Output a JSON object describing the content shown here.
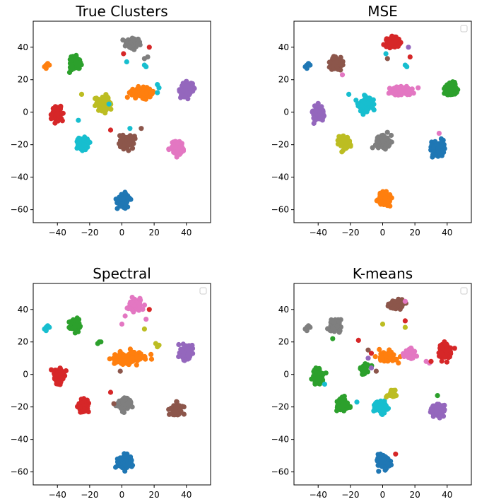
{
  "palette": [
    "#1f77b4",
    "#ff7f0e",
    "#2ca02c",
    "#d62728",
    "#9467bd",
    "#8c564b",
    "#e377c2",
    "#7f7f7f",
    "#bcbd22",
    "#17becf"
  ],
  "chart_data": [
    {
      "type": "scatter",
      "title": "True Clusters",
      "xlim": [
        -55,
        55
      ],
      "ylim": [
        -68,
        56
      ],
      "xticks": [
        -40,
        -20,
        0,
        20,
        40
      ],
      "yticks": [
        -60,
        -40,
        -20,
        0,
        20,
        40
      ],
      "legend": false,
      "clusters": [
        {
          "color": "#1f77b4",
          "cx": 1,
          "cy": -54,
          "sx": 3.5,
          "sy": 3.5,
          "n": 110
        },
        {
          "color": "#ff7f0e",
          "cx": 12,
          "cy": 12,
          "sx": 6,
          "sy": 2.5,
          "n": 90
        },
        {
          "color": "#2ca02c",
          "cx": -29,
          "cy": 30,
          "sx": 3.2,
          "sy": 3.5,
          "n": 90
        },
        {
          "color": "#d62728",
          "cx": -40,
          "cy": -1,
          "sx": 3,
          "sy": 4,
          "n": 90
        },
        {
          "color": "#9467bd",
          "cx": 40,
          "cy": 14,
          "sx": 3.5,
          "sy": 4,
          "n": 90
        },
        {
          "color": "#8c564b",
          "cx": 3,
          "cy": -18,
          "sx": 4,
          "sy": 3.5,
          "n": 90
        },
        {
          "color": "#e377c2",
          "cx": 34,
          "cy": -22,
          "sx": 3.5,
          "sy": 3.5,
          "n": 100
        },
        {
          "color": "#7f7f7f",
          "cx": 7,
          "cy": 43,
          "sx": 4,
          "sy": 2.8,
          "n": 90
        },
        {
          "color": "#bcbd22",
          "cx": -11,
          "cy": 5,
          "sx": 3.5,
          "sy": 4,
          "n": 90
        },
        {
          "color": "#17becf",
          "cx": -24,
          "cy": -19,
          "sx": 3,
          "sy": 3.5,
          "n": 90
        }
      ],
      "points": [
        {
          "color": "#ff7f0e",
          "x": -47,
          "y": 29
        },
        {
          "color": "#ff7f0e",
          "x": -48,
          "y": 28
        },
        {
          "color": "#ff7f0e",
          "x": -46,
          "y": 30
        },
        {
          "color": "#ff7f0e",
          "x": -47,
          "y": 27
        },
        {
          "color": "#ff7f0e",
          "x": -45,
          "y": 29
        },
        {
          "color": "#d62728",
          "x": 1,
          "y": 36
        },
        {
          "color": "#d62728",
          "x": 17,
          "y": 40
        },
        {
          "color": "#d62728",
          "x": -7,
          "y": -11
        },
        {
          "color": "#17becf",
          "x": 3,
          "y": 31
        },
        {
          "color": "#17becf",
          "x": 14,
          "y": 29
        },
        {
          "color": "#17becf",
          "x": 15,
          "y": 28
        },
        {
          "color": "#17becf",
          "x": 22,
          "y": 17
        },
        {
          "color": "#17becf",
          "x": 23,
          "y": 15
        },
        {
          "color": "#17becf",
          "x": -8,
          "y": 5
        },
        {
          "color": "#17becf",
          "x": -27,
          "y": -5
        },
        {
          "color": "#17becf",
          "x": 5,
          "y": -10
        },
        {
          "color": "#17becf",
          "x": 22,
          "y": 12
        },
        {
          "color": "#7f7f7f",
          "x": 14,
          "y": 33
        },
        {
          "color": "#7f7f7f",
          "x": 16,
          "y": 34
        },
        {
          "color": "#8c564b",
          "x": 12,
          "y": -10
        },
        {
          "color": "#bcbd22",
          "x": -25,
          "y": 11
        }
      ]
    },
    {
      "type": "scatter",
      "title": "MSE",
      "xlim": [
        -55,
        55
      ],
      "ylim": [
        -68,
        56
      ],
      "xticks": [
        -40,
        -20,
        0,
        20,
        40
      ],
      "yticks": [
        -60,
        -40,
        -20,
        0,
        20,
        40
      ],
      "legend": true,
      "clusters": [
        {
          "color": "#ff7f0e",
          "cx": 1,
          "cy": -54,
          "sx": 3.5,
          "sy": 3.5,
          "n": 110
        },
        {
          "color": "#e377c2",
          "cx": 12,
          "cy": 13,
          "sx": 6,
          "sy": 2.5,
          "n": 90
        },
        {
          "color": "#8c564b",
          "cx": -29,
          "cy": 30,
          "sx": 3.2,
          "sy": 3.5,
          "n": 90
        },
        {
          "color": "#9467bd",
          "cx": -40,
          "cy": -1,
          "sx": 3,
          "sy": 4,
          "n": 90
        },
        {
          "color": "#2ca02c",
          "cx": 42,
          "cy": 14,
          "sx": 3.5,
          "sy": 4,
          "n": 90
        },
        {
          "color": "#7f7f7f",
          "cx": 0,
          "cy": -18,
          "sx": 4,
          "sy": 3.5,
          "n": 90
        },
        {
          "color": "#1f77b4",
          "cx": 34,
          "cy": -22,
          "sx": 3.5,
          "sy": 3.5,
          "n": 100
        },
        {
          "color": "#d62728",
          "cx": 7,
          "cy": 43,
          "sx": 4,
          "sy": 2.8,
          "n": 90
        },
        {
          "color": "#17becf",
          "cx": -11,
          "cy": 5,
          "sx": 4,
          "sy": 4,
          "n": 95
        },
        {
          "color": "#bcbd22",
          "cx": -24,
          "cy": -19,
          "sx": 3,
          "sy": 3.5,
          "n": 90
        }
      ],
      "points": [
        {
          "color": "#1f77b4",
          "x": -47,
          "y": 29
        },
        {
          "color": "#1f77b4",
          "x": -48,
          "y": 28
        },
        {
          "color": "#1f77b4",
          "x": -46,
          "y": 30
        },
        {
          "color": "#1f77b4",
          "x": -47,
          "y": 27
        },
        {
          "color": "#1f77b4",
          "x": -45,
          "y": 29
        },
        {
          "color": "#17becf",
          "x": 2,
          "y": 36
        },
        {
          "color": "#d62728",
          "x": 17,
          "y": 34
        },
        {
          "color": "#9467bd",
          "x": 16,
          "y": 40
        },
        {
          "color": "#17becf",
          "x": 14,
          "y": 29
        },
        {
          "color": "#17becf",
          "x": 15,
          "y": 28
        },
        {
          "color": "#17becf",
          "x": -21,
          "y": 11
        },
        {
          "color": "#e377c2",
          "x": -25,
          "y": 23
        },
        {
          "color": "#e377c2",
          "x": 22,
          "y": 15
        },
        {
          "color": "#e377c2",
          "x": 35,
          "y": -13
        },
        {
          "color": "#8c564b",
          "x": 3,
          "y": 33
        }
      ]
    },
    {
      "type": "scatter",
      "title": "Spectral",
      "xlim": [
        -55,
        55
      ],
      "ylim": [
        -68,
        56
      ],
      "xticks": [
        -40,
        -20,
        0,
        20,
        40
      ],
      "yticks": [
        -60,
        -40,
        -20,
        0,
        20,
        40
      ],
      "legend": true,
      "clusters": [
        {
          "color": "#1f77b4",
          "cx": 1,
          "cy": -54,
          "sx": 3.5,
          "sy": 3.5,
          "n": 110
        },
        {
          "color": "#ff7f0e",
          "cx": 4,
          "cy": 10,
          "sx": 9,
          "sy": 3.5,
          "n": 160
        },
        {
          "color": "#2ca02c",
          "cx": -29,
          "cy": 30,
          "sx": 3.2,
          "sy": 3.5,
          "n": 90
        },
        {
          "color": "#d62728",
          "cx": -39,
          "cy": -1,
          "sx": 3,
          "sy": 4,
          "n": 90
        },
        {
          "color": "#d62728",
          "cx": -24,
          "cy": -19,
          "sx": 3,
          "sy": 3.5,
          "n": 90
        },
        {
          "color": "#9467bd",
          "cx": 40,
          "cy": 14,
          "sx": 3.5,
          "sy": 4,
          "n": 90
        },
        {
          "color": "#8c564b",
          "cx": 34,
          "cy": -22,
          "sx": 3.5,
          "sy": 3.5,
          "n": 100
        },
        {
          "color": "#e377c2",
          "cx": 8,
          "cy": 43,
          "sx": 4,
          "sy": 2.8,
          "n": 90
        },
        {
          "color": "#7f7f7f",
          "cx": 2,
          "cy": -18,
          "sx": 4,
          "sy": 3.5,
          "n": 90
        }
      ],
      "points": [
        {
          "color": "#17becf",
          "x": -47,
          "y": 29
        },
        {
          "color": "#17becf",
          "x": -48,
          "y": 28
        },
        {
          "color": "#17becf",
          "x": -46,
          "y": 30
        },
        {
          "color": "#17becf",
          "x": -47,
          "y": 27
        },
        {
          "color": "#17becf",
          "x": -45,
          "y": 29
        },
        {
          "color": "#bcbd22",
          "x": 22,
          "y": 17
        },
        {
          "color": "#bcbd22",
          "x": 23,
          "y": 18
        },
        {
          "color": "#bcbd22",
          "x": 21,
          "y": 19
        },
        {
          "color": "#bcbd22",
          "x": 14,
          "y": 28
        },
        {
          "color": "#2ca02c",
          "x": -14,
          "y": 20
        },
        {
          "color": "#2ca02c",
          "x": -15,
          "y": 19
        },
        {
          "color": "#2ca02c",
          "x": -13,
          "y": 20
        },
        {
          "color": "#e377c2",
          "x": 0,
          "y": 31
        },
        {
          "color": "#e377c2",
          "x": 15,
          "y": 34
        },
        {
          "color": "#e377c2",
          "x": 2,
          "y": 36
        },
        {
          "color": "#8c564b",
          "x": -1,
          "y": 2
        },
        {
          "color": "#d62728",
          "x": -7,
          "y": -11
        },
        {
          "color": "#d62728",
          "x": 17,
          "y": 40
        },
        {
          "color": "#8c564b",
          "x": -5,
          "y": -18
        }
      ]
    },
    {
      "type": "scatter",
      "title": "K-means",
      "xlim": [
        -55,
        55
      ],
      "ylim": [
        -68,
        56
      ],
      "xticks": [
        -40,
        -20,
        0,
        20,
        40
      ],
      "yticks": [
        -60,
        -40,
        -20,
        0,
        20,
        40
      ],
      "legend": true,
      "clusters": [
        {
          "color": "#1f77b4",
          "cx": 1,
          "cy": -54,
          "sx": 3.5,
          "sy": 3.5,
          "n": 110
        },
        {
          "color": "#ff7f0e",
          "cx": 3,
          "cy": 11,
          "sx": 5,
          "sy": 3,
          "n": 80
        },
        {
          "color": "#e377c2",
          "cx": 17,
          "cy": 13,
          "sx": 3,
          "sy": 3,
          "n": 35
        },
        {
          "color": "#2ca02c",
          "cx": -40,
          "cy": -1,
          "sx": 3,
          "sy": 4,
          "n": 90
        },
        {
          "color": "#2ca02c",
          "cx": -25,
          "cy": -19,
          "sx": 3,
          "sy": 3.5,
          "n": 90
        },
        {
          "color": "#2ca02c",
          "cx": -11,
          "cy": 3,
          "sx": 3,
          "sy": 3,
          "n": 40
        },
        {
          "color": "#d62728",
          "cx": 39,
          "cy": 14,
          "sx": 3.5,
          "sy": 4,
          "n": 90
        },
        {
          "color": "#8c564b",
          "cx": 8,
          "cy": 43,
          "sx": 4,
          "sy": 2.8,
          "n": 90
        },
        {
          "color": "#7f7f7f",
          "cx": -29,
          "cy": 30,
          "sx": 3.2,
          "sy": 3.5,
          "n": 90
        },
        {
          "color": "#9467bd",
          "cx": 34,
          "cy": -22,
          "sx": 3.5,
          "sy": 3.5,
          "n": 100
        },
        {
          "color": "#17becf",
          "cx": -1,
          "cy": -20,
          "sx": 3.5,
          "sy": 3.5,
          "n": 90
        },
        {
          "color": "#bcbd22",
          "cx": 6,
          "cy": -12,
          "sx": 3,
          "sy": 2,
          "n": 25
        }
      ],
      "points": [
        {
          "color": "#7f7f7f",
          "x": -47,
          "y": 29
        },
        {
          "color": "#7f7f7f",
          "x": -48,
          "y": 28
        },
        {
          "color": "#7f7f7f",
          "x": -46,
          "y": 30
        },
        {
          "color": "#7f7f7f",
          "x": -47,
          "y": 27
        },
        {
          "color": "#7f7f7f",
          "x": -45,
          "y": 29
        },
        {
          "color": "#d62728",
          "x": 8,
          "y": -49
        },
        {
          "color": "#bcbd22",
          "x": 0,
          "y": 31
        },
        {
          "color": "#bcbd22",
          "x": 14,
          "y": 29
        },
        {
          "color": "#d62728",
          "x": 14,
          "y": 33
        },
        {
          "color": "#e377c2",
          "x": 14,
          "y": 45
        },
        {
          "color": "#e377c2",
          "x": 29,
          "y": 7
        },
        {
          "color": "#e377c2",
          "x": 27,
          "y": 8
        },
        {
          "color": "#d62728",
          "x": 30,
          "y": 8
        },
        {
          "color": "#d62728",
          "x": -15,
          "y": 21
        },
        {
          "color": "#d62728",
          "x": -7,
          "y": 13
        },
        {
          "color": "#8c564b",
          "x": -9,
          "y": 15
        },
        {
          "color": "#8c564b",
          "x": -4,
          "y": 2
        },
        {
          "color": "#17becf",
          "x": -16,
          "y": -17
        },
        {
          "color": "#17becf",
          "x": -36,
          "y": -6
        },
        {
          "color": "#9467bd",
          "x": -9,
          "y": 10
        },
        {
          "color": "#9467bd",
          "x": -7,
          "y": 4
        },
        {
          "color": "#2ca02c",
          "x": -31,
          "y": 22
        },
        {
          "color": "#2ca02c",
          "x": 34,
          "y": -13
        }
      ]
    }
  ]
}
